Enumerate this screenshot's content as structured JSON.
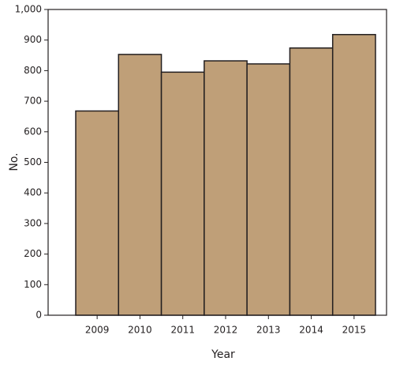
{
  "chart_data": {
    "type": "bar",
    "x_label": "Year",
    "y_label": "No.",
    "categories": [
      "2009",
      "2010",
      "2011",
      "2012",
      "2013",
      "2014",
      "2015"
    ],
    "values": [
      668,
      853,
      795,
      832,
      822,
      874,
      918
    ],
    "color": "#bf9f78",
    "edge_color": "#231f20",
    "ylim": [
      0,
      1000
    ],
    "yticks": [
      0,
      100,
      200,
      300,
      400,
      500,
      600,
      700,
      800,
      900,
      {
        "value": 1000,
        "label": "1,000"
      }
    ]
  }
}
